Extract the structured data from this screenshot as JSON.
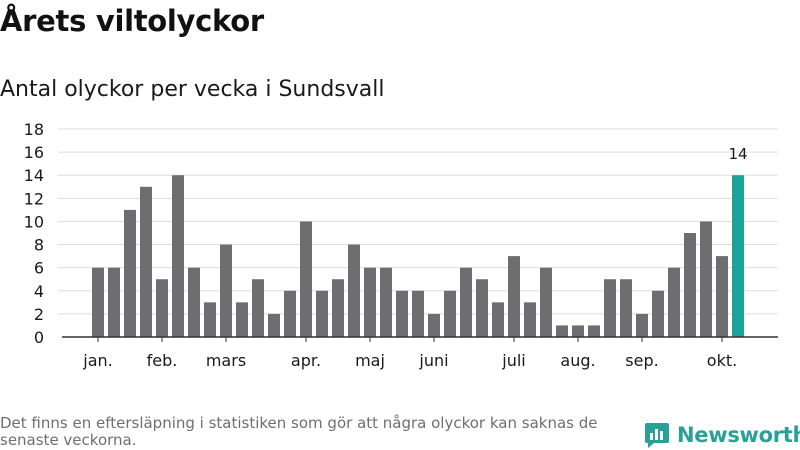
{
  "header": {
    "title": "Årets viltolyckor",
    "subtitle": "Antal olyckor per vecka i Sundsvall"
  },
  "chart_data": {
    "type": "bar",
    "title": "Antal olyckor per vecka i Sundsvall",
    "xlabel": "",
    "ylabel": "",
    "ylim": [
      0,
      18
    ],
    "yticks": [
      "0",
      "2",
      "4",
      "6",
      "8",
      "10",
      "12",
      "14",
      "16",
      "18"
    ],
    "grid": true,
    "values": [
      6,
      6,
      11,
      13,
      5,
      14,
      6,
      3,
      8,
      3,
      5,
      2,
      4,
      10,
      4,
      5,
      8,
      6,
      6,
      4,
      4,
      2,
      4,
      6,
      5,
      3,
      7,
      3,
      6,
      1,
      1,
      1,
      5,
      5,
      2,
      4,
      6,
      9,
      10,
      7,
      14
    ],
    "highlight_index": 40,
    "highlight_label": "14",
    "month_labels": [
      {
        "label": "jan.",
        "week": 1
      },
      {
        "label": "feb.",
        "week": 5
      },
      {
        "label": "mars",
        "week": 9
      },
      {
        "label": "apr.",
        "week": 14
      },
      {
        "label": "maj",
        "week": 18
      },
      {
        "label": "juni",
        "week": 22
      },
      {
        "label": "juli",
        "week": 27
      },
      {
        "label": "aug.",
        "week": 31
      },
      {
        "label": "sep.",
        "week": 35
      },
      {
        "label": "okt.",
        "week": 40
      }
    ],
    "colors": {
      "bar": "#6e6d72",
      "highlight": "#1aa396",
      "grid": "#dddddd",
      "axis": "#333333"
    }
  },
  "footer": {
    "note": "Det finns en eftersläpning i statistiken som gör att några olyckor kan saknas de senaste veckorna.",
    "logo_text": "Newsworthy"
  }
}
